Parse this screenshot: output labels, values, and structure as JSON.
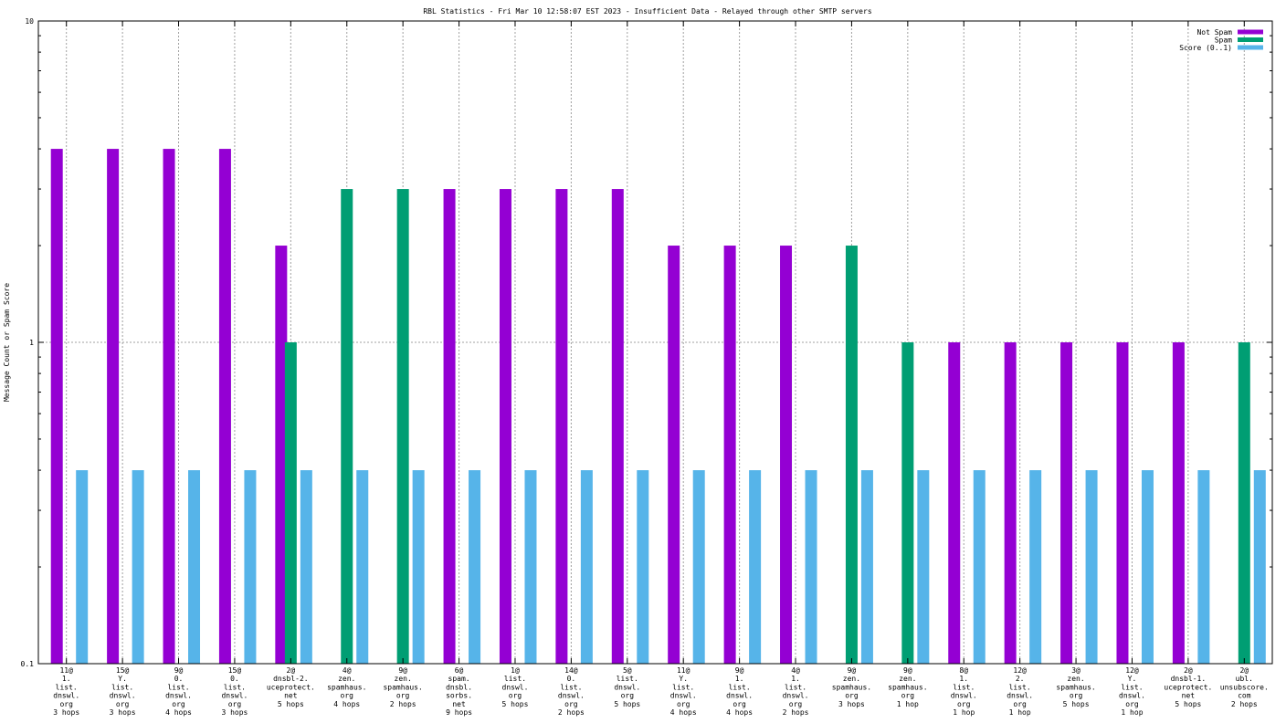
{
  "chart_data": {
    "type": "bar",
    "title": "RBL Statistics - Fri Mar 10 12:58:07 EST 2023 - Insufficient Data - Relayed through other SMTP servers",
    "ylabel": "Message Count or Spam Score",
    "xlabel": "",
    "yscale": "log",
    "ylim": [
      0.1,
      10
    ],
    "ytick_labels": [
      "10",
      "1",
      "0.1"
    ],
    "ytick_values": [
      10,
      1,
      0.1
    ],
    "legend_position": "top-right",
    "grid": true,
    "categories": [
      [
        "11@",
        "1.",
        "list.",
        "dnswl.",
        "org",
        "3 hops"
      ],
      [
        "15@",
        "Y.",
        "list.",
        "dnswl.",
        "org",
        "3 hops"
      ],
      [
        "9@",
        "0.",
        "list.",
        "dnswl.",
        "org",
        "4 hops"
      ],
      [
        "15@",
        "0.",
        "list.",
        "dnswl.",
        "org",
        "3 hops"
      ],
      [
        "2@",
        "dnsbl-2.",
        "uceprotect.",
        "net",
        "5 hops"
      ],
      [
        "4@",
        "zen.",
        "spamhaus.",
        "org",
        "4 hops"
      ],
      [
        "9@",
        "zen.",
        "spamhaus.",
        "org",
        "2 hops"
      ],
      [
        "6@",
        "spam.",
        "dnsbl.",
        "sorbs.",
        "net",
        "9 hops"
      ],
      [
        "1@",
        "list.",
        "dnswl.",
        "org",
        "5 hops"
      ],
      [
        "14@",
        "0.",
        "list.",
        "dnswl.",
        "org",
        "2 hops"
      ],
      [
        "5@",
        "list.",
        "dnswl.",
        "org",
        "5 hops"
      ],
      [
        "11@",
        "Y.",
        "list.",
        "dnswl.",
        "org",
        "4 hops"
      ],
      [
        "9@",
        "1.",
        "list.",
        "dnswl.",
        "org",
        "4 hops"
      ],
      [
        "4@",
        "1.",
        "list.",
        "dnswl.",
        "org",
        "2 hops"
      ],
      [
        "9@",
        "zen.",
        "spamhaus.",
        "org",
        "3 hops"
      ],
      [
        "9@",
        "zen.",
        "spamhaus.",
        "org",
        "1 hop"
      ],
      [
        "8@",
        "1.",
        "list.",
        "dnswl.",
        "org",
        "1 hop"
      ],
      [
        "12@",
        "2.",
        "list.",
        "dnswl.",
        "org",
        "1 hop"
      ],
      [
        "3@",
        "zen.",
        "spamhaus.",
        "org",
        "5 hops"
      ],
      [
        "12@",
        "Y.",
        "list.",
        "dnswl.",
        "org",
        "1 hop"
      ],
      [
        "2@",
        "dnsbl-1.",
        "uceprotect.",
        "net",
        "5 hops"
      ],
      [
        "2@",
        "ubl.",
        "unsubscore.",
        "com",
        "2 hops"
      ]
    ],
    "series": [
      {
        "name": "Not Spam",
        "color": "#9400d3",
        "values": [
          4,
          4,
          4,
          4,
          2,
          0,
          0,
          3,
          3,
          3,
          3,
          2,
          2,
          2,
          0,
          0,
          1,
          1,
          1,
          1,
          1,
          0
        ]
      },
      {
        "name": "Spam",
        "color": "#009e73",
        "values": [
          0,
          0,
          0,
          0,
          1,
          3,
          3,
          0,
          0,
          0,
          0,
          0,
          0,
          0,
          2,
          1,
          0,
          0,
          0,
          0,
          0,
          1
        ]
      },
      {
        "name": "Score (0..1)",
        "color": "#56b4e9",
        "values": [
          0.4,
          0.4,
          0.4,
          0.4,
          0.4,
          0.4,
          0.4,
          0.4,
          0.4,
          0.4,
          0.4,
          0.4,
          0.4,
          0.4,
          0.4,
          0.4,
          0.4,
          0.4,
          0.4,
          0.4,
          0.4,
          0.4
        ]
      }
    ]
  }
}
